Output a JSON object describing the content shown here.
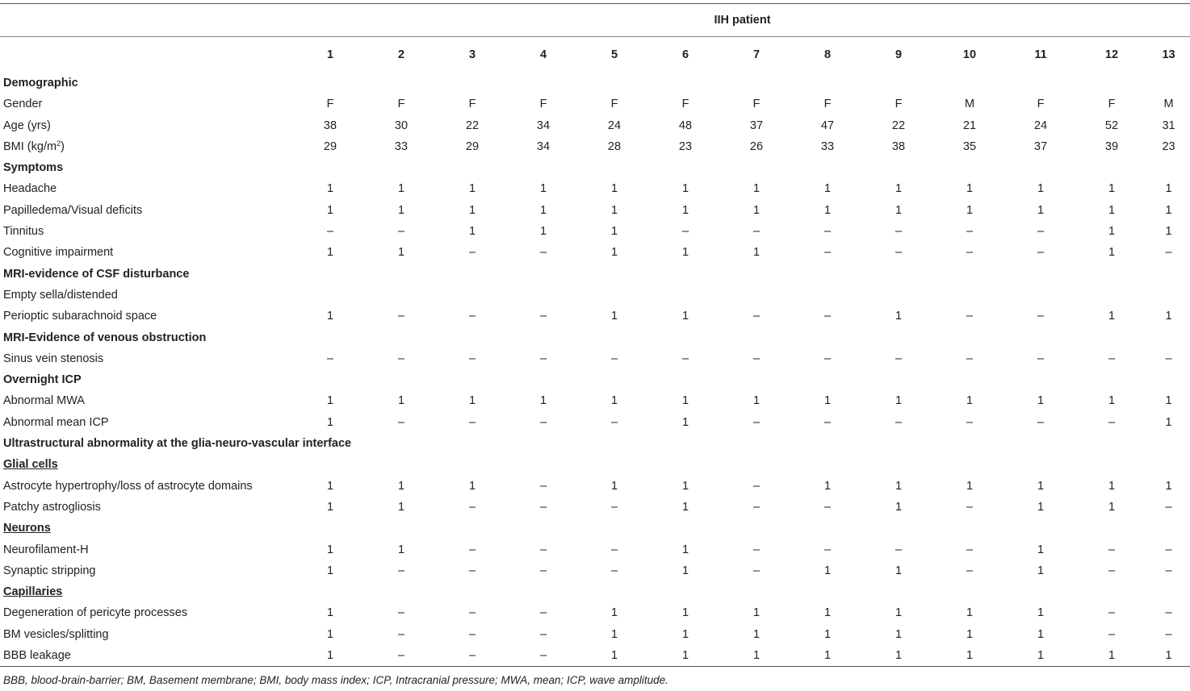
{
  "header": {
    "group_label": "IIH patient",
    "patients": [
      "1",
      "2",
      "3",
      "4",
      "5",
      "6",
      "7",
      "8",
      "9",
      "10",
      "11",
      "12",
      "13"
    ]
  },
  "rows": [
    {
      "kind": "section",
      "label": "Demographic"
    },
    {
      "kind": "data",
      "label": "Gender",
      "values": [
        "F",
        "F",
        "F",
        "F",
        "F",
        "F",
        "F",
        "F",
        "F",
        "M",
        "F",
        "F",
        "M"
      ]
    },
    {
      "kind": "data",
      "label": "Age (yrs)",
      "values": [
        "38",
        "30",
        "22",
        "34",
        "24",
        "48",
        "37",
        "47",
        "22",
        "21",
        "24",
        "52",
        "31"
      ]
    },
    {
      "kind": "data",
      "label": "BMI (kg/m",
      "label_sup": "2",
      "label_suffix": ")",
      "values": [
        "29",
        "33",
        "29",
        "34",
        "28",
        "23",
        "26",
        "33",
        "38",
        "35",
        "37",
        "39",
        "23"
      ]
    },
    {
      "kind": "section",
      "label": "Symptoms"
    },
    {
      "kind": "data",
      "label": "Headache",
      "values": [
        "1",
        "1",
        "1",
        "1",
        "1",
        "1",
        "1",
        "1",
        "1",
        "1",
        "1",
        "1",
        "1"
      ]
    },
    {
      "kind": "data",
      "label": "Papilledema/Visual deficits",
      "values": [
        "1",
        "1",
        "1",
        "1",
        "1",
        "1",
        "1",
        "1",
        "1",
        "1",
        "1",
        "1",
        "1"
      ]
    },
    {
      "kind": "data",
      "label": "Tinnitus",
      "values": [
        "–",
        "–",
        "1",
        "1",
        "1",
        "–",
        "–",
        "–",
        "–",
        "–",
        "–",
        "1",
        "1"
      ]
    },
    {
      "kind": "data",
      "label": "Cognitive impairment",
      "values": [
        "1",
        "1",
        "–",
        "–",
        "1",
        "1",
        "1",
        "–",
        "–",
        "–",
        "–",
        "1",
        "–"
      ]
    },
    {
      "kind": "section",
      "label": "MRI-evidence of CSF disturbance"
    },
    {
      "kind": "data",
      "label": "Empty sella/distended",
      "values": []
    },
    {
      "kind": "data",
      "label": "Perioptic subarachnoid space",
      "values": [
        "1",
        "–",
        "–",
        "–",
        "1",
        "1",
        "–",
        "–",
        "1",
        "–",
        "–",
        "1",
        "1"
      ]
    },
    {
      "kind": "section",
      "label": "MRI-Evidence of venous obstruction"
    },
    {
      "kind": "data",
      "label": "Sinus vein stenosis",
      "values": [
        "–",
        "–",
        "–",
        "–",
        "–",
        "–",
        "–",
        "–",
        "–",
        "–",
        "–",
        "–",
        "–"
      ]
    },
    {
      "kind": "section",
      "label": "Overnight ICP"
    },
    {
      "kind": "data",
      "label": "Abnormal MWA",
      "values": [
        "1",
        "1",
        "1",
        "1",
        "1",
        "1",
        "1",
        "1",
        "1",
        "1",
        "1",
        "1",
        "1"
      ]
    },
    {
      "kind": "data",
      "label": "Abnormal mean ICP",
      "values": [
        "1",
        "–",
        "–",
        "–",
        "–",
        "1",
        "–",
        "–",
        "–",
        "–",
        "–",
        "–",
        "1"
      ]
    },
    {
      "kind": "section",
      "label": "Ultrastructural abnormality at the glia-neuro-vascular interface"
    },
    {
      "kind": "subsection",
      "label": "Glial cells"
    },
    {
      "kind": "data",
      "label": "Astrocyte hypertrophy/loss of astrocyte domains",
      "values": [
        "1",
        "1",
        "1",
        "–",
        "1",
        "1",
        "–",
        "1",
        "1",
        "1",
        "1",
        "1",
        "1"
      ]
    },
    {
      "kind": "data",
      "label": "Patchy astrogliosis",
      "values": [
        "1",
        "1",
        "–",
        "–",
        "–",
        "1",
        "–",
        "–",
        "1",
        "–",
        "1",
        "1",
        "–"
      ]
    },
    {
      "kind": "subsection",
      "label": "Neurons"
    },
    {
      "kind": "data",
      "label": "Neurofilament-H",
      "values": [
        "1",
        "1",
        "–",
        "–",
        "–",
        "1",
        "–",
        "–",
        "–",
        "–",
        "1",
        "–",
        "–"
      ]
    },
    {
      "kind": "data",
      "label": "Synaptic stripping",
      "values": [
        "1",
        "–",
        "–",
        "–",
        "–",
        "1",
        "–",
        "1",
        "1",
        "–",
        "1",
        "–",
        "–"
      ]
    },
    {
      "kind": "subsection",
      "label": "Capillaries"
    },
    {
      "kind": "data",
      "label": "Degeneration of pericyte processes",
      "values": [
        "1",
        "–",
        "–",
        "–",
        "1",
        "1",
        "1",
        "1",
        "1",
        "1",
        "1",
        "–",
        "–"
      ]
    },
    {
      "kind": "data",
      "label": "BM vesicles/splitting",
      "values": [
        "1",
        "–",
        "–",
        "–",
        "1",
        "1",
        "1",
        "1",
        "1",
        "1",
        "1",
        "–",
        "–"
      ]
    },
    {
      "kind": "data",
      "label": "BBB leakage",
      "values": [
        "1",
        "–",
        "–",
        "–",
        "1",
        "1",
        "1",
        "1",
        "1",
        "1",
        "1",
        "1",
        "1"
      ]
    }
  ],
  "footnote": "BBB, blood-brain-barrier; BM, Basement membrane; BMI, body mass index; ICP, Intracranial pressure; MWA, mean; ICP, wave amplitude."
}
